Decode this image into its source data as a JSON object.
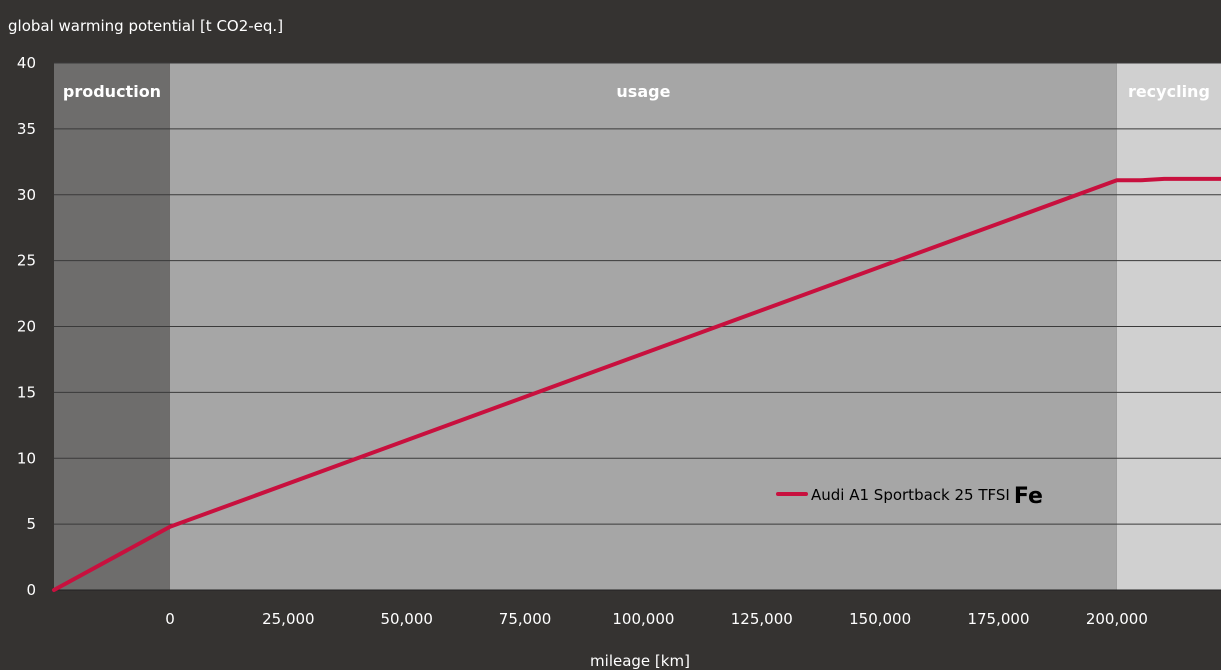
{
  "chart_data": {
    "type": "line",
    "ylabel": "global warming potential [t CO2-eq.]",
    "xlabel": "mileage [km]",
    "ylim": [
      0,
      40
    ],
    "yticks": [
      "0",
      "5",
      "10",
      "15",
      "20",
      "25",
      "30",
      "35",
      "40"
    ],
    "xticks": [
      {
        "value": 0,
        "label": "0"
      },
      {
        "value": 25000,
        "label": "25,000"
      },
      {
        "value": 50000,
        "label": "50,000"
      },
      {
        "value": 75000,
        "label": "75,000"
      },
      {
        "value": 100000,
        "label": "100,000"
      },
      {
        "value": 125000,
        "label": "125,000"
      },
      {
        "value": 150000,
        "label": "150,000"
      },
      {
        "value": 175000,
        "label": "175,000"
      },
      {
        "value": 200000,
        "label": "200,000"
      }
    ],
    "xlim": [
      -24500,
      222000
    ],
    "grid": true,
    "legend_position": "bottom-right",
    "phases": [
      {
        "name": "production",
        "from": -24500,
        "to": 0,
        "color": "#6e6d6c"
      },
      {
        "name": "usage",
        "from": 0,
        "to": 200000,
        "color": "#a6a6a6"
      },
      {
        "name": "recycling",
        "from": 200000,
        "to": 222000,
        "color": "#d0d0d0"
      }
    ],
    "series": [
      {
        "name": "Audi A1 Sportback 25 TFSI",
        "name_suffix": "Fe",
        "color": "#c8103e",
        "points": [
          {
            "x": -24500,
            "y": 0
          },
          {
            "x": 0,
            "y": 4.8
          },
          {
            "x": 200000,
            "y": 31.1
          },
          {
            "x": 205000,
            "y": 31.1
          },
          {
            "x": 210000,
            "y": 31.2
          },
          {
            "x": 222000,
            "y": 31.2
          }
        ]
      }
    ]
  }
}
